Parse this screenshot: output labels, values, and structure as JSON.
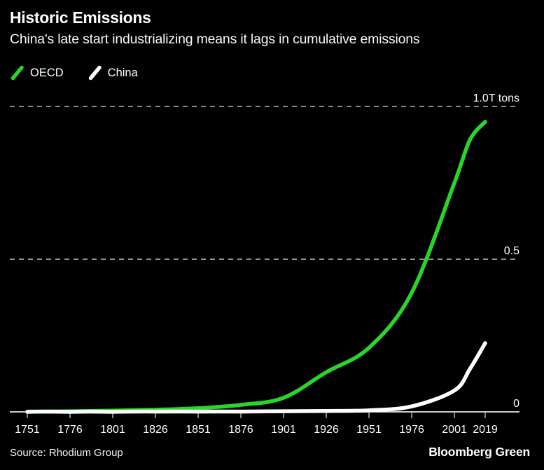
{
  "header": {
    "title": "Historic Emissions",
    "subtitle": "China's late start industrializing means it lags in cumulative emissions"
  },
  "legend": [
    {
      "label": "OECD",
      "color": "#2ad52a"
    },
    {
      "label": "China",
      "color": "#ffffff"
    }
  ],
  "footer": {
    "source": "Source: Rhodium Group",
    "brand": "Bloomberg Green"
  },
  "colors": {
    "background": "#000000",
    "oecd_line": "#2ad52a",
    "china_line": "#ffffff",
    "gridline": "#8c8c8c",
    "axis": "#e8e8e8",
    "tick": "#b0b0b0",
    "label": "#ffffff"
  },
  "chart_data": {
    "type": "line",
    "title": "Historic Emissions",
    "subtitle": "China's late start industrializing means it lags in cumulative emissions",
    "unit": "T tons (trillion tons, cumulative)",
    "x": [
      1751,
      1776,
      1801,
      1826,
      1851,
      1876,
      1901,
      1926,
      1951,
      1976,
      2001,
      2010,
      2019
    ],
    "series": [
      {
        "name": "OECD",
        "color": "#2ad52a",
        "values": [
          0.001,
          0.002,
          0.004,
          0.007,
          0.012,
          0.023,
          0.046,
          0.13,
          0.21,
          0.39,
          0.75,
          0.89,
          0.95
        ]
      },
      {
        "name": "China",
        "color": "#ffffff",
        "values": [
          0.0,
          0.0,
          0.0,
          0.001,
          0.001,
          0.001,
          0.002,
          0.003,
          0.005,
          0.018,
          0.07,
          0.14,
          0.225
        ]
      }
    ],
    "xlim": [
      1751,
      2019
    ],
    "ylim": [
      0,
      1.0
    ],
    "x_tick_labels": [
      "1751",
      "1776",
      "1801",
      "1826",
      "1851",
      "1876",
      "1901",
      "1926",
      "1951",
      "1976",
      "2001",
      "2019"
    ],
    "x_tick_years": [
      1751,
      1776,
      1801,
      1826,
      1851,
      1876,
      1901,
      1926,
      1951,
      1976,
      2001,
      2019
    ],
    "y_ticks": [
      {
        "value": 1.0,
        "label": "1.0T tons",
        "gridline": true
      },
      {
        "value": 0.5,
        "label": "0.5",
        "gridline": true
      },
      {
        "value": 0.0,
        "label": "0",
        "gridline": false
      }
    ],
    "grid": "dashed horizontal",
    "legend_position": "top-left"
  }
}
